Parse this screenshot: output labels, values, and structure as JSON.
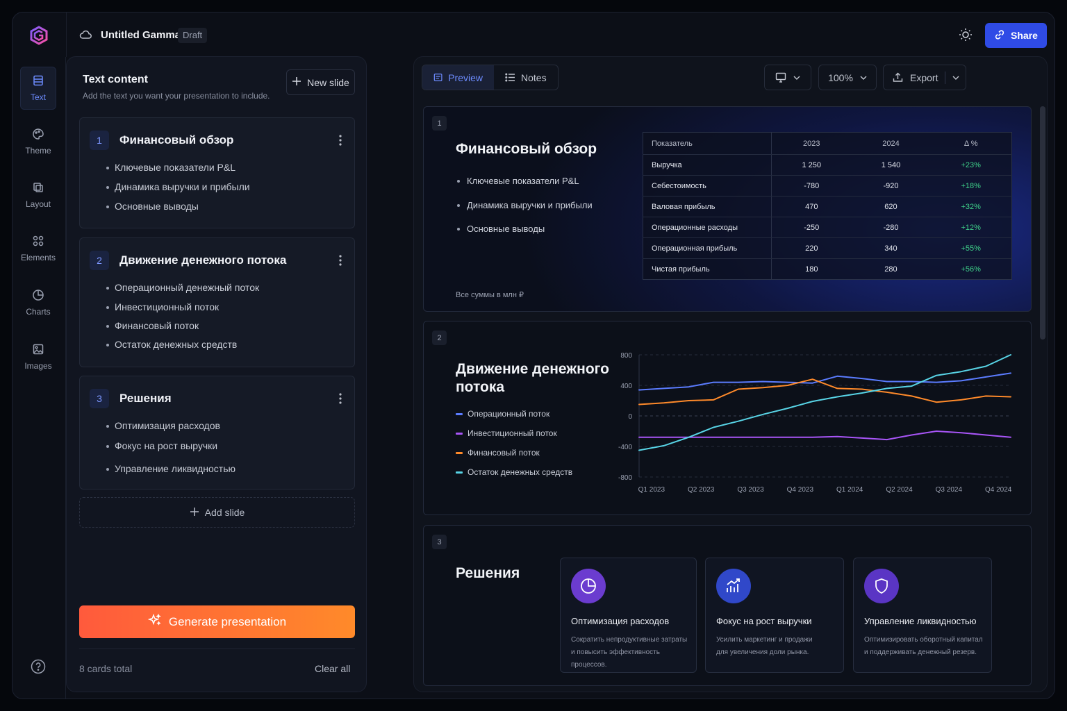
{
  "header": {
    "doc_title": "Untitled Gamma",
    "status": "Draft",
    "share_label": "Share"
  },
  "rail": {
    "items": [
      {
        "label": "Text",
        "icon": "text-icon"
      },
      {
        "label": "Theme",
        "icon": "palette-icon"
      },
      {
        "label": "Layout",
        "icon": "layout-icon"
      },
      {
        "label": "Elements",
        "icon": "elements-icon"
      },
      {
        "label": "Charts",
        "icon": "chart-icon"
      },
      {
        "label": "Images",
        "icon": "image-icon"
      }
    ]
  },
  "panel": {
    "title": "Text content",
    "subtitle": "Add the text you want your presentation to include.",
    "new_slide_label": "New slide",
    "cards": [
      {
        "num": "1",
        "title": "Финансовый обзор",
        "bullets": [
          "Ключевые показатели P&L",
          "Динамика выручки и прибыли",
          "Основные выводы"
        ]
      },
      {
        "num": "2",
        "title": "Движение денежного потока",
        "bullets": [
          "Операционный денежный поток",
          "Инвестиционный поток",
          "Финансовый поток",
          "Остаток денежных средств"
        ]
      },
      {
        "num": "3",
        "title": "Решения",
        "bullets": [
          "Оптимизация расходов",
          "Фокус на рост выручки",
          "Управление ликвидностью"
        ]
      }
    ],
    "add_slide_label": "Add slide",
    "generate_label": "Generate presentation",
    "cards_total": "8 cards total",
    "clear_all_label": "Clear all"
  },
  "toolbar": {
    "preview_label": "Preview",
    "notes_label": "Notes",
    "zoom": "100%",
    "export_label": "Export"
  },
  "slide1": {
    "num": "1",
    "title": "Финансовый обзор",
    "bullets": [
      "Ключевые показатели P&L",
      "Динамика выручки и прибыли",
      "Основные выводы"
    ],
    "note": "Все суммы в млн ₽",
    "table": {
      "headers": [
        "Показатель",
        "2023",
        "2024",
        "Δ %"
      ],
      "rows": [
        [
          "Выручка",
          "1 250",
          "1 540",
          "+23%"
        ],
        [
          "Себестоимость",
          "-780",
          "-920",
          "+18%"
        ],
        [
          "Валовая прибыль",
          "470",
          "620",
          "+32%"
        ],
        [
          "Операционные расходы",
          "-250",
          "-280",
          "+12%"
        ],
        [
          "Операционная прибыль",
          "220",
          "340",
          "+55%"
        ],
        [
          "Чистая прибыль",
          "180",
          "280",
          "+56%"
        ]
      ]
    }
  },
  "slide2": {
    "num": "2",
    "title_line1": "Движение денежного",
    "title_line2": "потока"
  },
  "chart_data": {
    "type": "line",
    "ylim": [
      -800,
      800
    ],
    "yticks": [
      "800",
      "400",
      "0",
      "-400",
      "-800"
    ],
    "categories": [
      "Q1 2023",
      "Q2 2023",
      "Q3 2023",
      "Q4 2023",
      "Q1 2024",
      "Q2 2024",
      "Q3 2024",
      "Q4 2024"
    ],
    "x": [
      0,
      0.5,
      1,
      1.5,
      2,
      2.5,
      3,
      3.5,
      4,
      4.5,
      5,
      5.5,
      6,
      6.5,
      7,
      7.5
    ],
    "series": [
      {
        "name": "Операционный поток",
        "color": "#5b7cff",
        "values": [
          340,
          360,
          380,
          440,
          440,
          450,
          440,
          430,
          520,
          490,
          450,
          450,
          440,
          460,
          510,
          560
        ]
      },
      {
        "name": "Инвестиционный поток",
        "color": "#a855f7",
        "values": [
          -280,
          -280,
          -280,
          -280,
          -280,
          -280,
          -280,
          -280,
          -270,
          -290,
          -310,
          -250,
          -200,
          -220,
          -250,
          -280
        ]
      },
      {
        "name": "Финансовый поток",
        "color": "#ff8a2a",
        "values": [
          150,
          170,
          200,
          210,
          350,
          370,
          400,
          480,
          360,
          350,
          310,
          260,
          180,
          210,
          260,
          250
        ]
      },
      {
        "name": "Остаток денежных средств",
        "color": "#58d4e6",
        "values": [
          -450,
          -390,
          -280,
          -150,
          -70,
          20,
          100,
          190,
          250,
          300,
          360,
          390,
          530,
          580,
          650,
          800
        ]
      }
    ]
  },
  "slide3": {
    "num": "3",
    "title": "Решения",
    "items": [
      {
        "title": "Оптимизация расходов",
        "desc1": "Сократить непродуктивные затраты",
        "desc2": "и повысить эффективность процессов.",
        "icon": "pie-chart-icon",
        "color": "#6b3ccf"
      },
      {
        "title": "Фокус на рост выручки",
        "desc1": "Усилить маркетинг и продажи",
        "desc2": "для увеличения доли рынка.",
        "icon": "growth-chart-icon",
        "color": "#3048c9"
      },
      {
        "title": "Управление ликвидностью",
        "desc1": "Оптимизировать оборотный капитал",
        "desc2": "и поддерживать денежный резерв.",
        "icon": "shield-icon",
        "color": "#5a35c4"
      }
    ]
  }
}
